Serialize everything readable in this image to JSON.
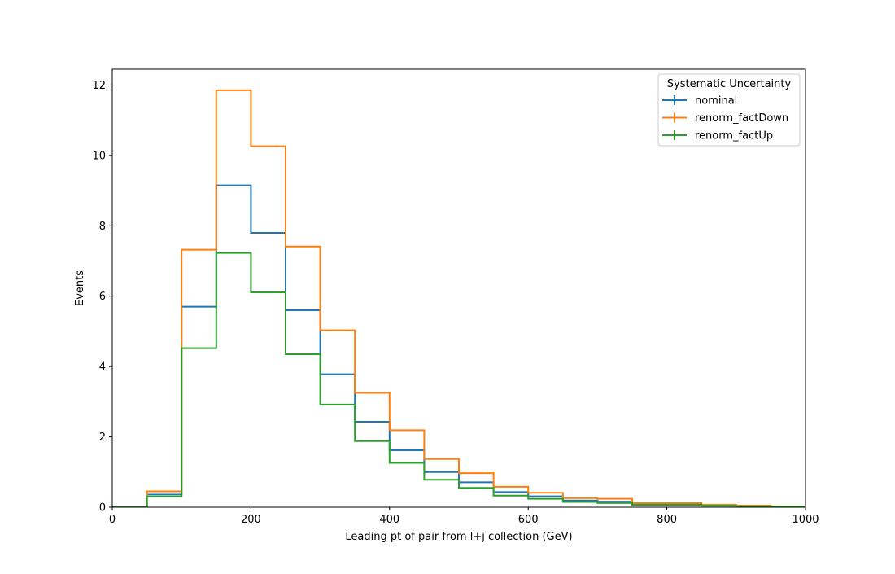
{
  "chart_data": {
    "type": "histogram-step",
    "xlabel": "Leading pt of pair from l+j collection (GeV)",
    "ylabel": "Events",
    "xlim": [
      0,
      1000
    ],
    "ylim": [
      0,
      12.45
    ],
    "xticks": [
      0,
      200,
      400,
      600,
      800,
      1000
    ],
    "yticks": [
      0,
      2,
      4,
      6,
      8,
      10,
      12
    ],
    "grid": false,
    "legend": {
      "title": "Systematic Uncertainty",
      "placement": "top-right"
    },
    "bin_edges": [
      0,
      50,
      100,
      150,
      200,
      250,
      300,
      350,
      400,
      450,
      500,
      550,
      600,
      650,
      700,
      750,
      800,
      850,
      900,
      950,
      1000
    ],
    "series": [
      {
        "name": "nominal",
        "color": "#1f77b4",
        "values": [
          0.0,
          0.36,
          5.7,
          9.15,
          7.8,
          5.6,
          3.78,
          2.43,
          1.62,
          1.0,
          0.71,
          0.43,
          0.31,
          0.19,
          0.16,
          0.09,
          0.09,
          0.05,
          0.03,
          0.02
        ]
      },
      {
        "name": "renorm_factDown",
        "color": "#ff7f0e",
        "values": [
          0.0,
          0.45,
          7.32,
          11.85,
          10.26,
          7.41,
          5.03,
          3.25,
          2.19,
          1.37,
          0.97,
          0.58,
          0.41,
          0.26,
          0.24,
          0.12,
          0.12,
          0.07,
          0.05,
          0.02
        ]
      },
      {
        "name": "renorm_factUp",
        "color": "#2ca02c",
        "values": [
          0.0,
          0.3,
          4.52,
          7.23,
          6.11,
          4.35,
          2.92,
          1.88,
          1.26,
          0.78,
          0.55,
          0.33,
          0.24,
          0.15,
          0.12,
          0.07,
          0.07,
          0.04,
          0.02,
          0.02
        ]
      }
    ]
  }
}
